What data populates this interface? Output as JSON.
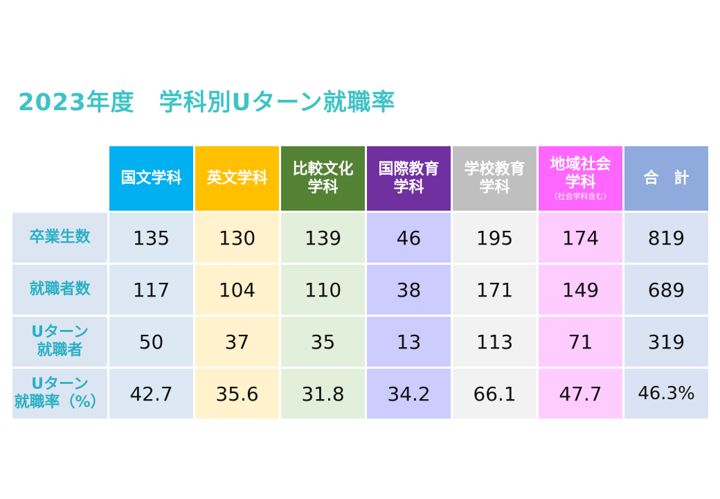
{
  "title": "2023年度　学科別Uターン就職率",
  "columns": [
    {
      "line1": "国文学科",
      "line2": "",
      "note": "",
      "bg": "#00b0f0",
      "cell_bg": "#dce9f5"
    },
    {
      "line1": "英文学科",
      "line2": "",
      "note": "",
      "bg": "#ffc000",
      "cell_bg": "#fff2cc"
    },
    {
      "line1": "比較文化",
      "line2": "学科",
      "note": "",
      "bg": "#548235",
      "cell_bg": "#e2efda"
    },
    {
      "line1": "国際教育",
      "line2": "学科",
      "note": "",
      "bg": "#7030a0",
      "cell_bg": "#ccccff"
    },
    {
      "line1": "学校教育",
      "line2": "学科",
      "note": "",
      "bg": "#bfbfbf",
      "cell_bg": "#f2f2f2"
    },
    {
      "line1": "地域社会",
      "line2": "学科",
      "note": "（社会学科含む）",
      "bg": "#ff66ff",
      "cell_bg": "#ffccff"
    },
    {
      "line1": "合　計",
      "line2": "",
      "note": "",
      "bg": "#8faadc",
      "cell_bg": "#dae3f3"
    }
  ],
  "rows": [
    {
      "label1": "卒業生数",
      "label2": "",
      "values": [
        "135",
        "130",
        "139",
        "46",
        "195",
        "174",
        "819"
      ]
    },
    {
      "label1": "就職者数",
      "label2": "",
      "values": [
        "117",
        "104",
        "110",
        "38",
        "171",
        "149",
        "689"
      ]
    },
    {
      "label1": "Uターン",
      "label2": "就職者",
      "values": [
        "50",
        "37",
        "35",
        "13",
        "113",
        "71",
        "319"
      ]
    },
    {
      "label1": "Uターン",
      "label2": "就職率（%）",
      "values": [
        "42.7",
        "35.6",
        "31.8",
        "34.2",
        "66.1",
        "47.7",
        "46.3%"
      ]
    }
  ]
}
